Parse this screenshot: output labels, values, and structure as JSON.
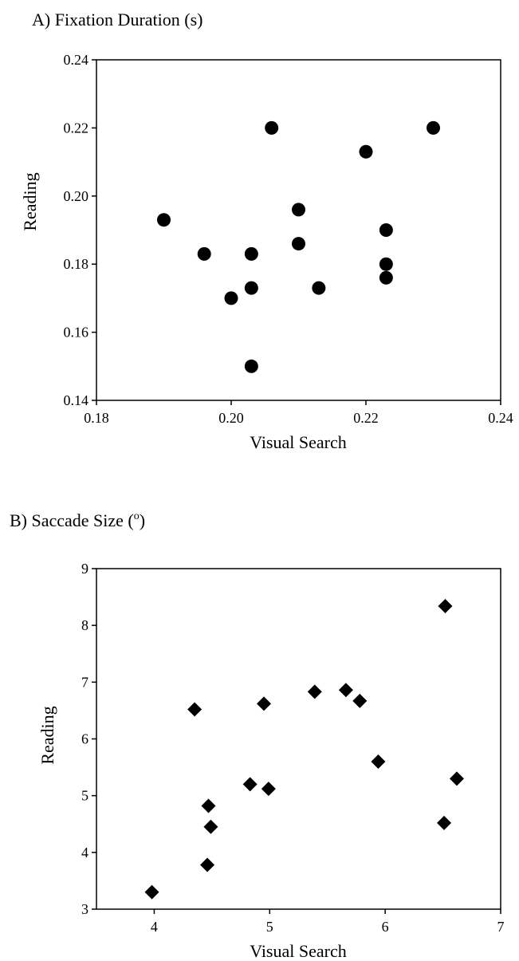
{
  "chart_data": [
    {
      "type": "scatter",
      "title": "A)  Fixation Duration (s)",
      "xlabel": "Visual Search",
      "ylabel": "Reading",
      "xlim": [
        0.18,
        0.24
      ],
      "ylim": [
        0.14,
        0.24
      ],
      "x_ticks": [
        "0.18",
        "0.20",
        "0.22",
        "0.24"
      ],
      "y_ticks": [
        "0.14",
        "0.16",
        "0.18",
        "0.20",
        "0.22",
        "0.24"
      ],
      "marker": "circle",
      "grid": false,
      "points": [
        {
          "x": 0.19,
          "y": 0.193
        },
        {
          "x": 0.196,
          "y": 0.183
        },
        {
          "x": 0.2,
          "y": 0.17
        },
        {
          "x": 0.203,
          "y": 0.183
        },
        {
          "x": 0.203,
          "y": 0.173
        },
        {
          "x": 0.203,
          "y": 0.15
        },
        {
          "x": 0.206,
          "y": 0.22
        },
        {
          "x": 0.21,
          "y": 0.196
        },
        {
          "x": 0.21,
          "y": 0.186
        },
        {
          "x": 0.213,
          "y": 0.173
        },
        {
          "x": 0.22,
          "y": 0.213
        },
        {
          "x": 0.223,
          "y": 0.19
        },
        {
          "x": 0.223,
          "y": 0.18
        },
        {
          "x": 0.223,
          "y": 0.176
        },
        {
          "x": 0.23,
          "y": 0.22
        }
      ]
    },
    {
      "type": "scatter",
      "title_prefix": "B)  Saccade Size (",
      "title_sup": "o",
      "title_suffix": ")",
      "xlabel": "Visual Search",
      "ylabel": "Reading",
      "xlim": [
        3.5,
        7
      ],
      "ylim": [
        3,
        9
      ],
      "x_ticks": [
        "4",
        "5",
        "6",
        "7"
      ],
      "y_ticks": [
        "3",
        "4",
        "5",
        "6",
        "7",
        "8",
        "9"
      ],
      "marker": "diamond",
      "grid": false,
      "points": [
        {
          "x": 3.98,
          "y": 3.3
        },
        {
          "x": 4.35,
          "y": 6.52
        },
        {
          "x": 4.46,
          "y": 3.78
        },
        {
          "x": 4.47,
          "y": 4.82
        },
        {
          "x": 4.49,
          "y": 4.45
        },
        {
          "x": 4.83,
          "y": 5.2
        },
        {
          "x": 4.95,
          "y": 6.62
        },
        {
          "x": 4.99,
          "y": 5.12
        },
        {
          "x": 5.39,
          "y": 6.83
        },
        {
          "x": 5.66,
          "y": 6.86
        },
        {
          "x": 5.78,
          "y": 6.67
        },
        {
          "x": 5.94,
          "y": 5.6
        },
        {
          "x": 6.52,
          "y": 8.34
        },
        {
          "x": 6.51,
          "y": 4.52
        },
        {
          "x": 6.62,
          "y": 5.3
        }
      ]
    }
  ]
}
